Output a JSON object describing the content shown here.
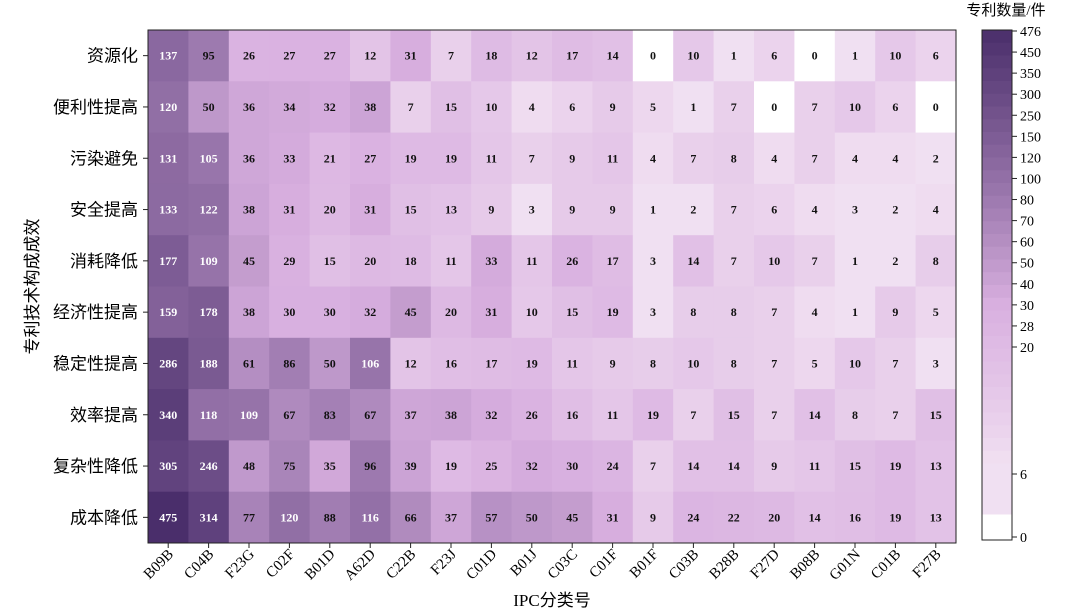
{
  "chart_data": {
    "type": "heatmap",
    "xlabel": "IPC分类号",
    "ylabel": "专利技术构成成效",
    "colorbar_label": "专利数量/件",
    "x_categories": [
      "B09B",
      "C04B",
      "F23G",
      "C02F",
      "B01D",
      "A62D",
      "C22B",
      "F23J",
      "C01D",
      "B01J",
      "C03C",
      "C01F",
      "B01F",
      "C03B",
      "B28B",
      "F27D",
      "B08B",
      "G01N",
      "C01B",
      "F27B"
    ],
    "y_categories": [
      "资源化",
      "便利性提高",
      "污染避免",
      "安全提高",
      "消耗降低",
      "经济性提高",
      "稳定性提高",
      "效率提高",
      "复杂性降低",
      "成本降低"
    ],
    "values": [
      [
        137,
        95,
        26,
        27,
        27,
        12,
        31,
        7,
        18,
        12,
        17,
        14,
        0,
        10,
        1,
        6,
        0,
        1,
        10,
        6
      ],
      [
        120,
        50,
        36,
        34,
        32,
        38,
        7,
        15,
        10,
        4,
        6,
        9,
        5,
        1,
        7,
        0,
        7,
        10,
        6,
        0
      ],
      [
        131,
        105,
        36,
        33,
        21,
        27,
        19,
        19,
        11,
        7,
        9,
        11,
        4,
        7,
        8,
        4,
        7,
        4,
        4,
        2
      ],
      [
        133,
        122,
        38,
        31,
        20,
        31,
        15,
        13,
        9,
        3,
        9,
        9,
        1,
        2,
        7,
        6,
        4,
        3,
        2,
        4
      ],
      [
        177,
        109,
        45,
        29,
        15,
        20,
        18,
        11,
        33,
        11,
        26,
        17,
        3,
        14,
        7,
        10,
        7,
        1,
        2,
        8
      ],
      [
        159,
        178,
        38,
        30,
        30,
        32,
        45,
        20,
        31,
        10,
        15,
        19,
        3,
        8,
        8,
        7,
        4,
        1,
        9,
        5
      ],
      [
        286,
        188,
        61,
        86,
        50,
        106,
        12,
        16,
        17,
        19,
        11,
        9,
        8,
        10,
        8,
        7,
        5,
        10,
        7,
        3
      ],
      [
        340,
        118,
        109,
        67,
        83,
        67,
        37,
        38,
        32,
        26,
        16,
        11,
        19,
        7,
        15,
        7,
        14,
        8,
        7,
        15
      ],
      [
        305,
        246,
        48,
        75,
        35,
        96,
        39,
        19,
        25,
        32,
        30,
        24,
        7,
        14,
        14,
        9,
        11,
        15,
        19,
        13
      ],
      [
        475,
        314,
        77,
        120,
        88,
        116,
        66,
        37,
        57,
        50,
        45,
        31,
        9,
        24,
        22,
        20,
        14,
        16,
        19,
        13
      ]
    ],
    "colorbar_ticks": [
      0,
      6,
      20,
      28,
      30,
      40,
      50,
      60,
      70,
      80,
      100,
      120,
      150,
      250,
      300,
      350,
      450,
      476
    ],
    "colorbar_tick_labels": [
      "0",
      "6",
      "20",
      "28",
      "30",
      "40",
      "50",
      "60",
      "70",
      "80",
      "100",
      "120",
      "150",
      "250",
      "300",
      "350",
      "450",
      "476"
    ],
    "color_low": "#ffffff",
    "color_high": "#4a2e6b",
    "text_light": "#ffffff",
    "text_dark": "#111111"
  }
}
